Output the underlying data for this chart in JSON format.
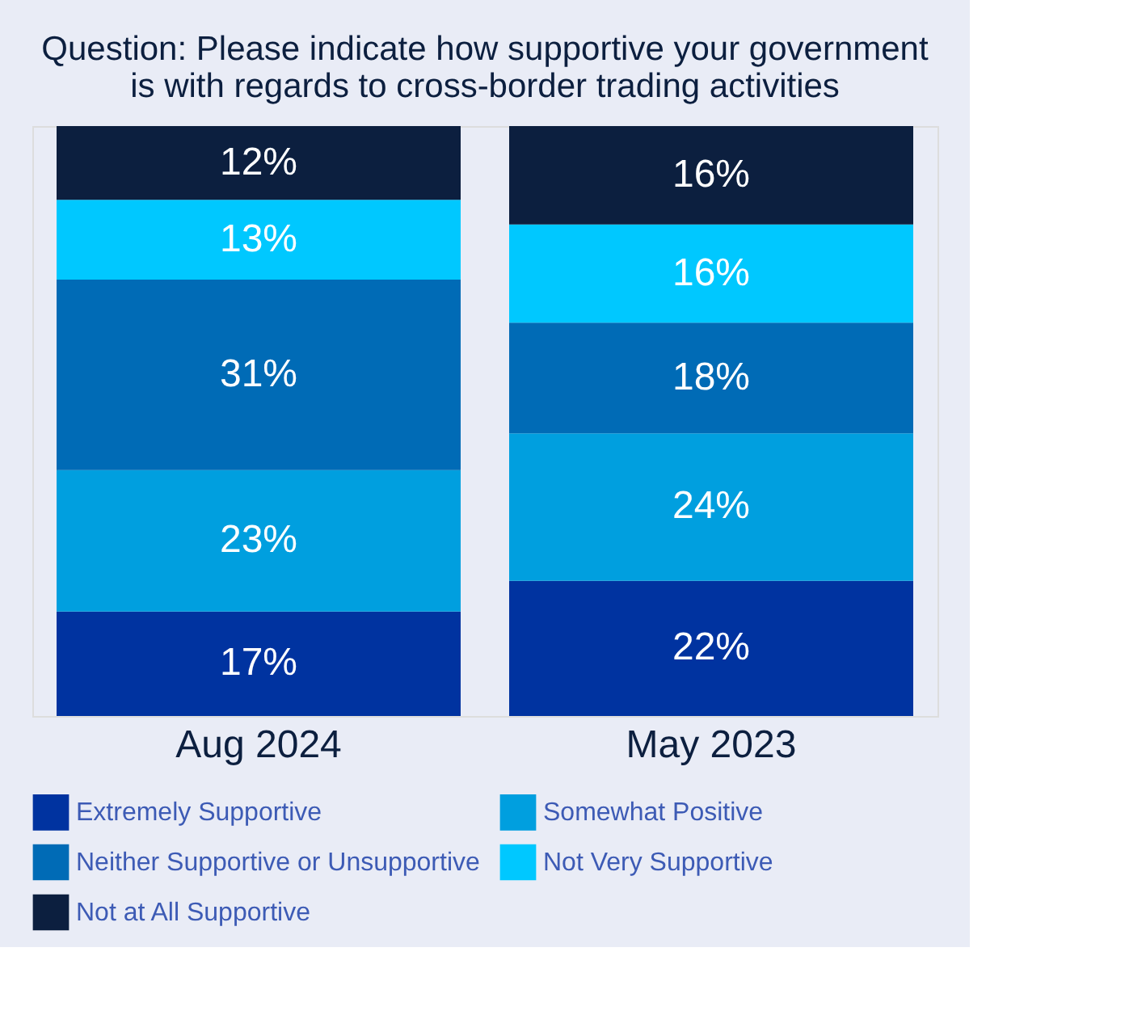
{
  "chart_data": {
    "type": "bar",
    "stacked": true,
    "title": "Question: Please indicate how supportive your government is with regards to cross-border trading activities",
    "categories": [
      "Aug 2024",
      "May 2023"
    ],
    "series": [
      {
        "name": "Extremely Supportive",
        "color": "#0033a0",
        "values": [
          17,
          22
        ],
        "value_labels": [
          "17%",
          "22%"
        ]
      },
      {
        "name": "Somewhat Positive",
        "color": "#009fdf",
        "values": [
          23,
          24
        ],
        "value_labels": [
          "23%",
          "24%"
        ]
      },
      {
        "name": "Neither Supportive or Unsupportive",
        "color": "#006bb6",
        "values": [
          31,
          18
        ],
        "value_labels": [
          "31%",
          "18%"
        ]
      },
      {
        "name": "Not Very Supportive",
        "color": "#00c8ff",
        "values": [
          13,
          16
        ],
        "value_labels": [
          "13%",
          "16%"
        ]
      },
      {
        "name": "Not at All Supportive",
        "color": "#0c1f3f",
        "values": [
          12,
          16
        ],
        "value_labels": [
          "12%",
          "16%"
        ]
      }
    ],
    "legend": "bottom"
  }
}
